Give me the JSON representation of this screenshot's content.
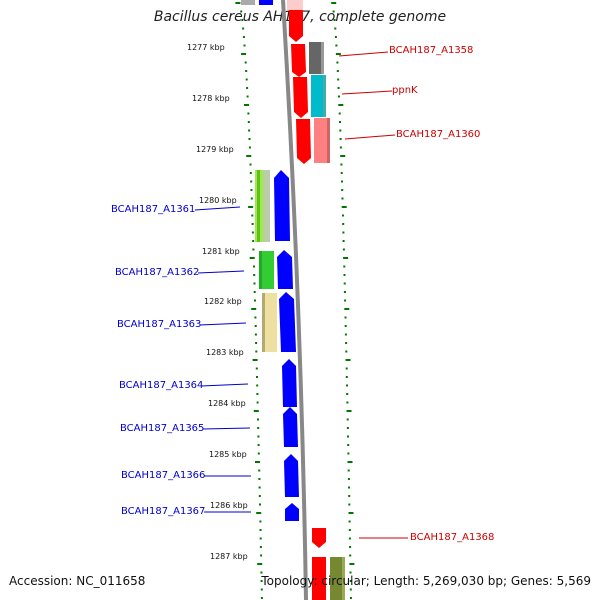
{
  "title": "Bacillus cereus AH187, complete genome",
  "footer": {
    "accession": "Accession: NC_011658",
    "info": "Topology: circular; Length: 5,269,030 bp; Genes: 5,569"
  },
  "colors": {
    "forward_strand": "#ff0000",
    "reverse_strand": "#0000ff",
    "backbone": "#888888",
    "tick": "#007700",
    "left_label": "#0000cc",
    "right_label": "#cc0000"
  },
  "ticks": [
    "1277 kbp",
    "1278 kbp",
    "1279 kbp",
    "1280 kbp",
    "1281 kbp",
    "1282 kbp",
    "1283 kbp",
    "1284 kbp",
    "1285 kbp",
    "1286 kbp",
    "1287 kbp"
  ],
  "genes_right": [
    {
      "label": "BCAH187_A1358"
    },
    {
      "label": "ppnK"
    },
    {
      "label": "BCAH187_A1360"
    },
    {
      "label": "BCAH187_A1368"
    }
  ],
  "genes_left": [
    {
      "label": "BCAH187_A1361"
    },
    {
      "label": "BCAH187_A1362"
    },
    {
      "label": "BCAH187_A1363"
    },
    {
      "label": "BCAH187_A1364"
    },
    {
      "label": "BCAH187_A1365"
    },
    {
      "label": "BCAH187_A1366"
    },
    {
      "label": "BCAH187_A1367"
    }
  ]
}
